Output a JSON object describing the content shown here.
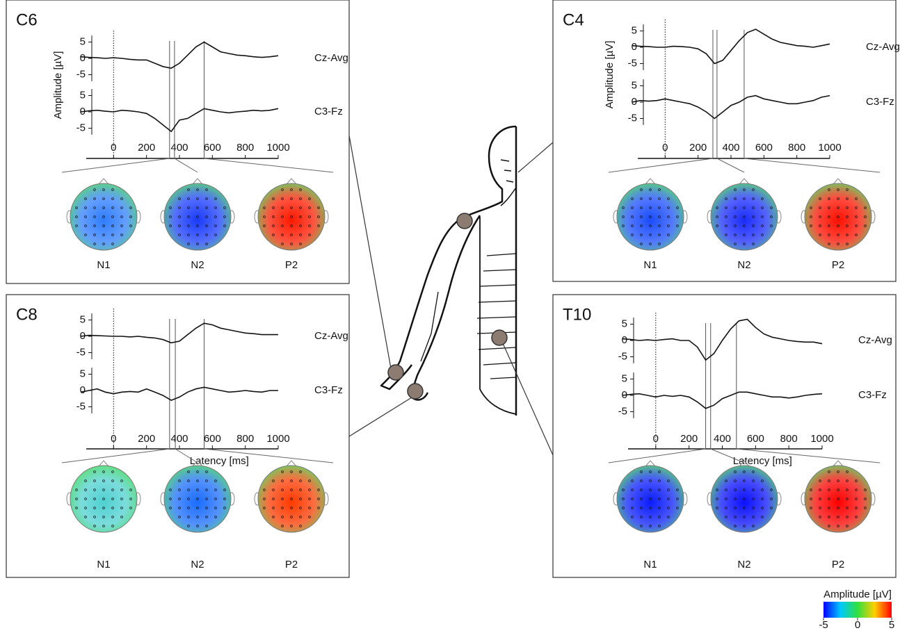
{
  "chart_data": [
    {
      "type": "line",
      "title": "C6",
      "ylabel": "Amplitude [µV]",
      "x": [
        -200,
        -150,
        -100,
        -50,
        0,
        50,
        100,
        150,
        200,
        250,
        300,
        350,
        400,
        450,
        500,
        550,
        600,
        650,
        700,
        750,
        800,
        850,
        900,
        950,
        1000
      ],
      "xlim": [
        -200,
        1000
      ],
      "xticks": [
        0,
        200,
        400,
        600,
        800,
        1000
      ],
      "ylim": [
        -7,
        7
      ],
      "yticks": [
        5,
        0,
        -5
      ],
      "series": [
        {
          "name": "Cz-Avg",
          "color": "#111",
          "values": [
            0.5,
            0.3,
            0.2,
            0,
            0.2,
            0,
            -0.3,
            -0.5,
            -0.5,
            -1.5,
            -2.5,
            -3,
            -1.5,
            1,
            3.5,
            5,
            3.5,
            2,
            1.5,
            1,
            0.8,
            0.5,
            0.3,
            0.5,
            0.8
          ]
        },
        {
          "name": "C3-Fz",
          "color": "#111",
          "values": [
            0,
            0.3,
            0.5,
            0.2,
            0,
            0.5,
            0.3,
            0,
            -0.5,
            -2,
            -4,
            -6,
            -2.5,
            -2,
            -0.5,
            1,
            0.5,
            0,
            -0.3,
            0,
            0.2,
            0.5,
            0.3,
            0.5,
            1
          ]
        }
      ],
      "peaks": [
        {
          "label": "N1",
          "value": 340,
          "color": "#2f7dff"
        },
        {
          "label": "N2",
          "value": 370,
          "color": "#1a3cff"
        },
        {
          "label": "P2",
          "value": 550,
          "color": "#ff1a00"
        }
      ]
    },
    {
      "type": "line",
      "title": "C4",
      "ylabel": "Amplitude [µV]",
      "x": [
        -200,
        -150,
        -100,
        -50,
        0,
        50,
        100,
        150,
        200,
        250,
        300,
        350,
        400,
        450,
        500,
        550,
        600,
        650,
        700,
        750,
        800,
        850,
        900,
        950,
        1000
      ],
      "xlim": [
        -200,
        1000
      ],
      "xticks": [
        0,
        200,
        400,
        600,
        800,
        1000
      ],
      "ylim": [
        -7,
        7
      ],
      "yticks": [
        5,
        0,
        -5
      ],
      "series": [
        {
          "name": "Cz-Avg",
          "color": "#111",
          "values": [
            0.5,
            0.3,
            0.2,
            0,
            0,
            0.3,
            0.2,
            0,
            -0.5,
            -2,
            -5,
            -4,
            -1,
            2,
            4.5,
            5.5,
            4,
            2.5,
            1.5,
            1,
            0.5,
            0.3,
            0,
            0.5,
            1
          ]
        },
        {
          "name": "C3-Fz",
          "color": "#111",
          "values": [
            0,
            0.5,
            0.3,
            0.5,
            1,
            0.5,
            0,
            -0.5,
            -1.5,
            -3,
            -5,
            -3,
            -1,
            0,
            1.5,
            2,
            1,
            0.5,
            0,
            -0.5,
            -0.5,
            0,
            0.5,
            1.5,
            2
          ]
        }
      ],
      "peaks": [
        {
          "label": "N1",
          "value": 290,
          "color": "#1a4cff"
        },
        {
          "label": "N2",
          "value": 315,
          "color": "#1a2cff"
        },
        {
          "label": "P2",
          "value": 480,
          "color": "#ff1000"
        }
      ]
    },
    {
      "type": "line",
      "title": "C8",
      "xlabel": "Latency [ms]",
      "x": [
        -200,
        -150,
        -100,
        -50,
        0,
        50,
        100,
        150,
        200,
        250,
        300,
        350,
        400,
        450,
        500,
        550,
        600,
        650,
        700,
        750,
        800,
        850,
        900,
        950,
        1000
      ],
      "xlim": [
        -200,
        1000
      ],
      "xticks": [
        0,
        200,
        400,
        600,
        800,
        1000
      ],
      "ylim": [
        -7,
        7
      ],
      "yticks": [
        5,
        0,
        -5
      ],
      "series": [
        {
          "name": "Cz-Avg",
          "color": "#111",
          "values": [
            0,
            0.3,
            0.2,
            0.1,
            0,
            0,
            -0.2,
            0,
            -0.3,
            -0.5,
            -1,
            -2,
            -1.5,
            0.5,
            2.5,
            4,
            3.5,
            2.5,
            2,
            1.5,
            1,
            0.8,
            0.5,
            0.5,
            0.5
          ]
        },
        {
          "name": "C3-Fz",
          "color": "#111",
          "values": [
            -0.5,
            0,
            0.5,
            -0.5,
            -1,
            -0.5,
            -0.3,
            -0.5,
            0.5,
            -0.5,
            -1.5,
            -3,
            -2,
            -0.5,
            0.5,
            1,
            0.5,
            0,
            -0.5,
            -0.3,
            0,
            -0.3,
            -0.5,
            0,
            0
          ]
        }
      ],
      "peaks": [
        {
          "label": "N1",
          "value": 340,
          "color": "#4fd0d0"
        },
        {
          "label": "N2",
          "value": 375,
          "color": "#1a6cff"
        },
        {
          "label": "P2",
          "value": 550,
          "color": "#ff3a00"
        }
      ]
    },
    {
      "type": "line",
      "title": "T10",
      "xlabel": "Latency [ms]",
      "x": [
        -200,
        -150,
        -100,
        -50,
        0,
        50,
        100,
        150,
        200,
        250,
        300,
        350,
        400,
        450,
        500,
        550,
        600,
        650,
        700,
        750,
        800,
        850,
        900,
        950,
        1000
      ],
      "xlim": [
        -200,
        1000
      ],
      "xticks": [
        0,
        200,
        400,
        600,
        800,
        1000
      ],
      "ylim": [
        -7,
        7
      ],
      "yticks": [
        5,
        0,
        -5
      ],
      "series": [
        {
          "name": "Cz-Avg",
          "color": "#111",
          "values": [
            0.5,
            0.3,
            0,
            0.2,
            0,
            0.3,
            0.5,
            0,
            0,
            -2,
            -6,
            -4,
            0,
            3.5,
            6,
            6.5,
            4,
            2,
            1,
            0.5,
            0,
            -0.3,
            -0.5,
            -0.5,
            -1
          ]
        },
        {
          "name": "C3-Fz",
          "color": "#111",
          "values": [
            0,
            0.3,
            0.5,
            0,
            -0.5,
            0,
            -0.3,
            0,
            -0.5,
            -2,
            -4,
            -3,
            -1,
            0,
            1,
            1,
            0.5,
            0,
            -0.5,
            -0.5,
            -0.8,
            -0.5,
            0,
            0.3,
            0.5
          ]
        }
      ],
      "peaks": [
        {
          "label": "N1",
          "value": 300,
          "color": "#0a1cff"
        },
        {
          "label": "N2",
          "value": 330,
          "color": "#0a10ff"
        },
        {
          "label": "P2",
          "value": 485,
          "color": "#ff0000"
        }
      ]
    }
  ],
  "colorbar": {
    "label": "Amplitude [µV]",
    "range": [
      -5,
      5
    ],
    "ticks": [
      -5,
      0,
      5
    ]
  }
}
